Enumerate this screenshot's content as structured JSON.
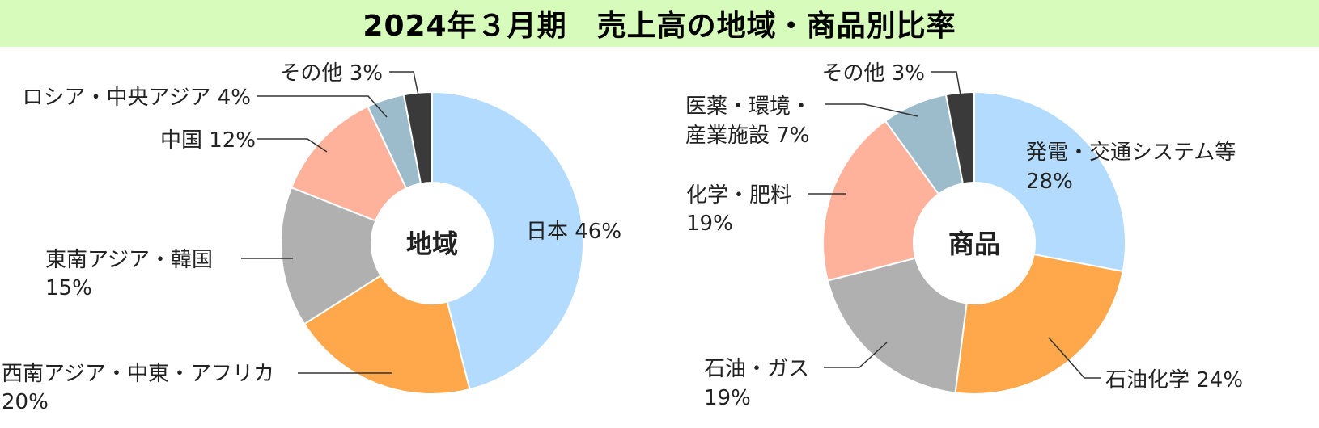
{
  "title": "2024年３月期　売上高の地域・商品別比率",
  "chart_data": [
    {
      "type": "pie",
      "variant": "donut",
      "center_label": "地域",
      "slices": [
        {
          "name": "日本",
          "value": 46,
          "label": [
            "日本 46%"
          ],
          "color": "#b3dbfd"
        },
        {
          "name": "西南アジア・中東・アフリカ",
          "value": 20,
          "label": [
            "西南アジア・中東・アフリカ",
            "20%"
          ],
          "color": "#fea84b"
        },
        {
          "name": "東南アジア・韓国",
          "value": 15,
          "label": [
            "東南アジア・韓国",
            "15%"
          ],
          "color": "#b0b0b0"
        },
        {
          "name": "中国",
          "value": 12,
          "label": [
            "中国 12%"
          ],
          "color": "#feb29b"
        },
        {
          "name": "ロシア・中央アジア",
          "value": 4,
          "label": [
            "ロシア・中央アジア 4%"
          ],
          "color": "#9cbccb"
        },
        {
          "name": "その他",
          "value": 3,
          "label": [
            "その他 3%"
          ],
          "color": "#3a3a3a"
        }
      ]
    },
    {
      "type": "pie",
      "variant": "donut",
      "center_label": "商品",
      "slices": [
        {
          "name": "発電・交通システム等",
          "value": 28,
          "label": [
            "発電・交通システム等",
            "28%"
          ],
          "color": "#b3dbfd"
        },
        {
          "name": "石油化学",
          "value": 24,
          "label": [
            "石油化学 24%"
          ],
          "color": "#fea84b"
        },
        {
          "name": "石油・ガス",
          "value": 19,
          "label": [
            "石油・ガス",
            "19%"
          ],
          "color": "#b0b0b0"
        },
        {
          "name": "化学・肥料",
          "value": 19,
          "label": [
            "化学・肥料",
            "19%"
          ],
          "color": "#feb29b"
        },
        {
          "name": "医薬・環境・産業施設",
          "value": 7,
          "label": [
            "医薬・環境・",
            "産業施設 7%"
          ],
          "color": "#9cbccb"
        },
        {
          "name": "その他",
          "value": 3,
          "label": [
            "その他 3%"
          ],
          "color": "#3a3a3a"
        }
      ]
    }
  ]
}
